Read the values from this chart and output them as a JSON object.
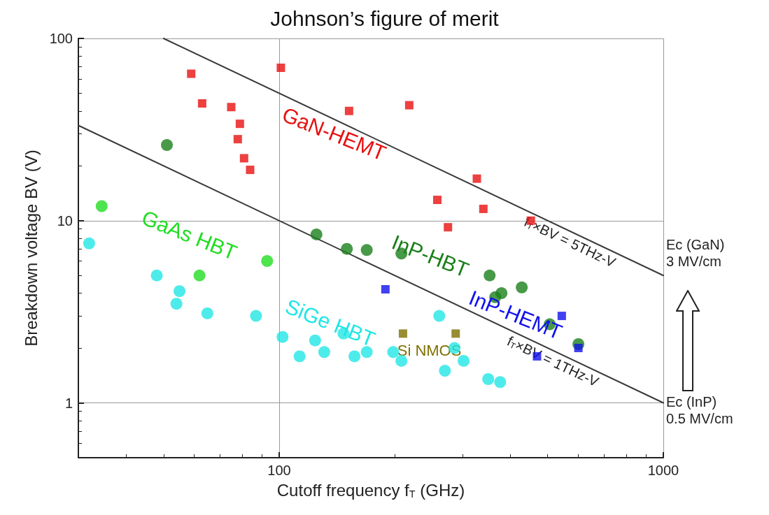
{
  "chart_data": {
    "type": "scatter",
    "title": "Johnson’s figure of merit",
    "xlabel": "Cutoff frequency f$_{T}$ (GHz)",
    "ylabel": "Breakdown voltage BV (V)",
    "log": "xy",
    "xlim": [
      30,
      1000
    ],
    "ylim": [
      0.5,
      100
    ],
    "xticks": [
      100,
      1000
    ],
    "yticks": [
      1,
      10,
      100
    ],
    "grid": true,
    "legend": false,
    "series": [
      {
        "name": "GaN-HEMT",
        "color": "#e81010",
        "marker": "square",
        "x": [
          59,
          63,
          75,
          79,
          78,
          81,
          84,
          101,
          152,
          218,
          327,
          258,
          340,
          275,
          452
        ],
        "values": [
          64,
          44,
          42,
          34,
          28,
          22,
          19,
          69,
          40,
          43,
          17,
          13,
          11.6,
          9.2,
          10
        ]
      },
      {
        "name": "InP-HBT",
        "color": "#1a7f1a",
        "marker": "circle",
        "x": [
          51,
          125,
          150,
          169,
          208,
          353,
          428,
          379,
          365,
          506,
          601
        ],
        "values": [
          26,
          8.4,
          7.0,
          6.9,
          6.6,
          5.0,
          4.3,
          4.0,
          3.8,
          2.7,
          2.1
        ]
      },
      {
        "name": "GaAs HBT",
        "color": "#22dd22",
        "marker": "circle",
        "x": [
          34.5,
          62,
          93
        ],
        "values": [
          12,
          5.0,
          6.0
        ]
      },
      {
        "name": "SiGe HBT",
        "color": "#22e6e6",
        "marker": "circle",
        "x": [
          32,
          48,
          55,
          54,
          65,
          87,
          102,
          113,
          124,
          131,
          147,
          157,
          169,
          198,
          208,
          270,
          286,
          261,
          350,
          376,
          302
        ],
        "values": [
          7.5,
          5.0,
          4.1,
          3.5,
          3.1,
          3.0,
          2.3,
          1.8,
          2.2,
          1.9,
          2.4,
          1.8,
          1.9,
          1.9,
          1.7,
          1.5,
          2.0,
          3.0,
          1.35,
          1.3,
          1.7
        ]
      },
      {
        "name": "InP-HEMT",
        "color": "#1111ee",
        "marker": "square",
        "x": [
          189,
          544,
          469,
          601
        ],
        "values": [
          4.2,
          3.0,
          1.8,
          2.0
        ]
      },
      {
        "name": "Si NMOS",
        "color": "#807000",
        "marker": "square",
        "x": [
          210,
          288
        ],
        "values": [
          2.4,
          2.4
        ]
      },
      {
        "name": "f$_{T}$×BV = 5THz-V",
        "type": "line",
        "color": "#3a3a3a",
        "marker": "none",
        "line_style": "solid",
        "x": [
          50,
          1000
        ],
        "values": [
          100,
          5
        ]
      },
      {
        "name": "f$_{T}$×BV = 1THz-V",
        "type": "line",
        "color": "#3a3a3a",
        "marker": "none",
        "line_style": "solid",
        "x": [
          30,
          1000
        ],
        "values": [
          33.3,
          1
        ]
      }
    ],
    "annotations": [
      "Ec (GaN)\n3 MV/cm",
      "Ec (InP)\n0.5 MV/cm"
    ]
  }
}
